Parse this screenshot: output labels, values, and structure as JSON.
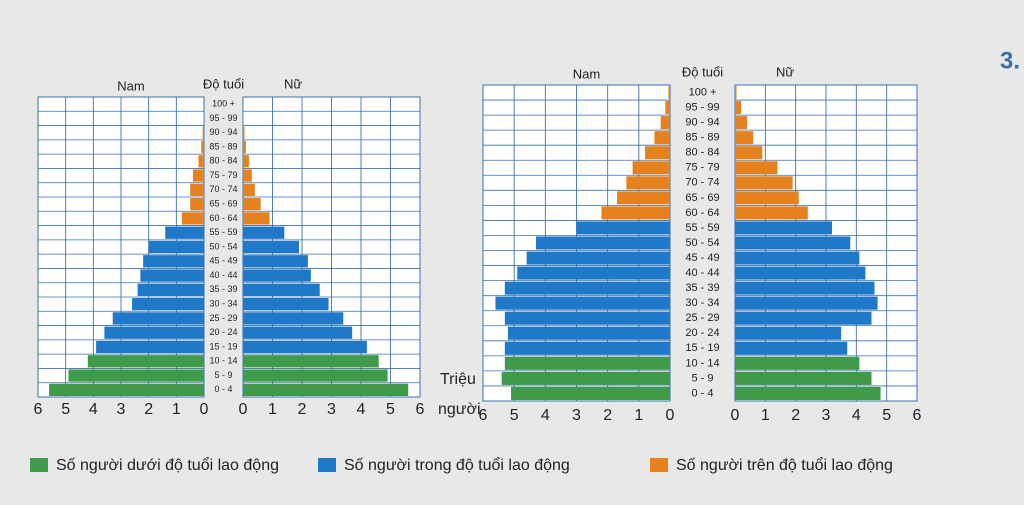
{
  "chart_data": [
    {
      "type": "pyramid",
      "left_title": "Nam",
      "center_title": "Độ tuổi",
      "right_title": "Nữ",
      "categories": [
        "0 - 4",
        "5 - 9",
        "10 - 14",
        "15 - 19",
        "20 - 24",
        "25 - 29",
        "30 - 34",
        "35 - 39",
        "40 - 44",
        "45 - 49",
        "50 - 54",
        "55 - 59",
        "60 - 64",
        "65 - 69",
        "70 - 74",
        "75 - 79",
        "80 - 84",
        "85 - 89",
        "90 - 94",
        "95 - 99",
        "100 +"
      ],
      "series": [
        {
          "color": "#3f9a4a",
          "male": [
            5.6,
            4.9,
            4.2,
            null,
            null,
            null,
            null,
            null,
            null,
            null,
            null,
            null,
            null,
            null,
            null,
            null,
            null,
            null,
            null,
            null,
            null
          ],
          "female": [
            5.6,
            4.9,
            4.6,
            null,
            null,
            null,
            null,
            null,
            null,
            null,
            null,
            null,
            null,
            null,
            null,
            null,
            null,
            null,
            null,
            null,
            null
          ]
        },
        {
          "color": "#1f78c8",
          "male": [
            null,
            null,
            null,
            3.9,
            3.6,
            3.3,
            2.6,
            2.4,
            2.3,
            2.2,
            2.0,
            1.4,
            null,
            null,
            null,
            null,
            null,
            null,
            null,
            null,
            null
          ],
          "female": [
            null,
            null,
            null,
            4.2,
            3.7,
            3.4,
            2.9,
            2.6,
            2.3,
            2.2,
            1.9,
            1.4,
            null,
            null,
            null,
            null,
            null,
            null,
            null,
            null,
            null
          ]
        },
        {
          "color": "#e5821e",
          "male": [
            null,
            null,
            null,
            null,
            null,
            null,
            null,
            null,
            null,
            null,
            null,
            null,
            0.8,
            0.5,
            0.5,
            0.4,
            0.2,
            0.1,
            0.05,
            0.02,
            0
          ],
          "female": [
            null,
            null,
            null,
            null,
            null,
            null,
            null,
            null,
            null,
            null,
            null,
            null,
            0.9,
            0.6,
            0.4,
            0.3,
            0.2,
            0.1,
            0.05,
            0.02,
            0
          ]
        }
      ],
      "xlim": [
        0,
        6
      ],
      "xticks": [
        0,
        1,
        2,
        3,
        4,
        5,
        6
      ],
      "grid": true
    },
    {
      "type": "pyramid",
      "left_title": "Nam",
      "center_title": "Độ tuổi",
      "right_title": "Nữ",
      "categories": [
        "0 - 4",
        "5 - 9",
        "10 - 14",
        "15 - 19",
        "20 - 24",
        "25 - 29",
        "30 - 34",
        "35 - 39",
        "40 - 44",
        "45 - 49",
        "50 - 54",
        "55 - 59",
        "60 - 64",
        "65 - 69",
        "70 - 74",
        "75 - 79",
        "80 - 84",
        "85 - 89",
        "90 - 94",
        "95 - 99",
        "100 +"
      ],
      "series": [
        {
          "color": "#3f9a4a",
          "male": [
            5.1,
            5.4,
            5.3,
            null,
            null,
            null,
            null,
            null,
            null,
            null,
            null,
            null,
            null,
            null,
            null,
            null,
            null,
            null,
            null,
            null,
            null
          ],
          "female": [
            4.8,
            4.5,
            4.1,
            null,
            null,
            null,
            null,
            null,
            null,
            null,
            null,
            null,
            null,
            null,
            null,
            null,
            null,
            null,
            null,
            null,
            null
          ]
        },
        {
          "color": "#1f78c8",
          "male": [
            null,
            null,
            null,
            5.3,
            5.2,
            5.3,
            5.6,
            5.3,
            4.9,
            4.6,
            4.3,
            3.0,
            null,
            null,
            null,
            null,
            null,
            null,
            null,
            null,
            null
          ],
          "female": [
            null,
            null,
            null,
            3.7,
            3.5,
            4.5,
            4.7,
            4.6,
            4.3,
            4.1,
            3.8,
            3.2,
            null,
            null,
            null,
            null,
            null,
            null,
            null,
            null,
            null
          ]
        },
        {
          "color": "#e5821e",
          "male": [
            null,
            null,
            null,
            null,
            null,
            null,
            null,
            null,
            null,
            null,
            null,
            null,
            2.2,
            1.7,
            1.4,
            1.2,
            0.8,
            0.5,
            0.3,
            0.15,
            0.05
          ],
          "female": [
            null,
            null,
            null,
            null,
            null,
            null,
            null,
            null,
            null,
            null,
            null,
            null,
            2.4,
            2.1,
            1.9,
            1.4,
            0.9,
            0.6,
            0.4,
            0.2,
            0.05
          ]
        }
      ],
      "xlim": [
        0,
        6
      ],
      "xticks": [
        0,
        1,
        2,
        3,
        4,
        5,
        6
      ],
      "grid": true
    }
  ],
  "unit_label": [
    "Triệu",
    "người"
  ],
  "legend": [
    {
      "name": "Số người dưới độ tuổi lao động",
      "color": "#3f9a4a"
    },
    {
      "name": "Số người trong độ tuổi lao động",
      "color": "#1f78c8"
    },
    {
      "name": "Số người trên độ tuổi lao động",
      "color": "#e5821e"
    }
  ],
  "page_number": "3."
}
